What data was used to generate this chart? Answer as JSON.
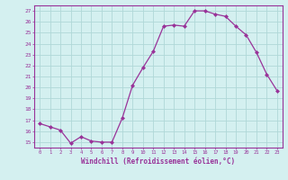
{
  "x": [
    0,
    1,
    2,
    3,
    4,
    5,
    6,
    7,
    8,
    9,
    10,
    11,
    12,
    13,
    14,
    15,
    16,
    17,
    18,
    19,
    20,
    21,
    22,
    23
  ],
  "y": [
    16.7,
    16.4,
    16.1,
    14.9,
    15.5,
    15.1,
    15.0,
    15.0,
    17.2,
    20.2,
    21.8,
    23.3,
    25.6,
    25.7,
    25.6,
    27.0,
    27.0,
    26.7,
    26.5,
    25.6,
    24.8,
    23.2,
    21.2,
    19.7
  ],
  "line_color": "#993399",
  "marker": "D",
  "marker_size": 2,
  "bg_color": "#d4f0f0",
  "grid_color": "#b0d8d8",
  "xlabel": "Windchill (Refroidissement éolien,°C)",
  "ylabel_ticks": [
    15,
    16,
    17,
    18,
    19,
    20,
    21,
    22,
    23,
    24,
    25,
    26,
    27
  ],
  "xlim": [
    -0.5,
    23.5
  ],
  "ylim": [
    14.5,
    27.5
  ],
  "axis_label_color": "#993399",
  "tick_color": "#993399",
  "font_name": "monospace"
}
